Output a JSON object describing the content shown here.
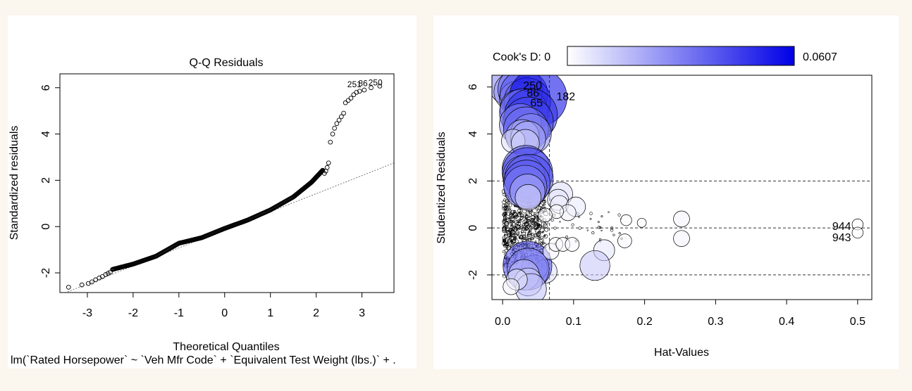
{
  "chart_data": [
    {
      "type": "scatter",
      "title": "Q-Q Residuals",
      "xlabel": "Theoretical Quantiles",
      "ylabel": "Standardized residuals",
      "subtitle": "lm(`Rated Horsepower` ~ `Veh Mfr Code` + `Equivalent Test Weight (lbs.)` + .",
      "xlim": [
        -3.6,
        3.7
      ],
      "ylim": [
        -2.85,
        6.6
      ],
      "xticks": [
        -3,
        -2,
        -1,
        0,
        1,
        2,
        3
      ],
      "yticks": [
        -2,
        0,
        2,
        4,
        6
      ],
      "reference_line": {
        "x": [
          -3.6,
          3.7
        ],
        "y": [
          -2.95,
          2.75
        ]
      },
      "outlier_labels": [
        "251",
        "86",
        "250"
      ],
      "points_head": [
        {
          "x": -3.41,
          "y": -2.62
        },
        {
          "x": -3.12,
          "y": -2.52
        },
        {
          "x": -2.98,
          "y": -2.46
        },
        {
          "x": -2.9,
          "y": -2.39
        },
        {
          "x": -2.82,
          "y": -2.3
        },
        {
          "x": -2.74,
          "y": -2.22
        },
        {
          "x": -2.67,
          "y": -2.16
        },
        {
          "x": -2.6,
          "y": -2.07
        },
        {
          "x": -2.55,
          "y": -2.02
        },
        {
          "x": -2.5,
          "y": -1.97
        }
      ],
      "points_body": [
        {
          "x": -2.45,
          "y": -1.85
        },
        {
          "x": -2.0,
          "y": -1.62
        },
        {
          "x": -1.5,
          "y": -1.28
        },
        {
          "x": -1.0,
          "y": -0.72
        },
        {
          "x": -0.5,
          "y": -0.48
        },
        {
          "x": 0.0,
          "y": -0.08
        },
        {
          "x": 0.5,
          "y": 0.28
        },
        {
          "x": 1.0,
          "y": 0.72
        },
        {
          "x": 1.5,
          "y": 1.28
        },
        {
          "x": 1.9,
          "y": 1.92
        },
        {
          "x": 2.15,
          "y": 2.45
        }
      ],
      "points_tail": [
        {
          "x": 2.18,
          "y": 2.3
        },
        {
          "x": 2.21,
          "y": 2.4
        },
        {
          "x": 2.24,
          "y": 2.55
        },
        {
          "x": 2.27,
          "y": 2.75
        },
        {
          "x": 2.31,
          "y": 3.65
        },
        {
          "x": 2.36,
          "y": 4.0
        },
        {
          "x": 2.4,
          "y": 4.25
        },
        {
          "x": 2.45,
          "y": 4.45
        },
        {
          "x": 2.5,
          "y": 4.6
        },
        {
          "x": 2.55,
          "y": 4.75
        },
        {
          "x": 2.6,
          "y": 4.9
        },
        {
          "x": 2.64,
          "y": 5.35
        },
        {
          "x": 2.7,
          "y": 5.45
        },
        {
          "x": 2.76,
          "y": 5.55
        },
        {
          "x": 2.82,
          "y": 5.7
        },
        {
          "x": 2.88,
          "y": 5.8
        },
        {
          "x": 2.95,
          "y": 5.85
        },
        {
          "x": 3.05,
          "y": 5.9
        },
        {
          "x": 3.2,
          "y": 6.0
        },
        {
          "x": 3.39,
          "y": 6.07
        }
      ]
    },
    {
      "type": "scatter",
      "title": "",
      "xlabel": "Hat-Values",
      "ylabel": "Studentized Residuals",
      "xlim": [
        -0.015,
        0.52
      ],
      "ylim": [
        -3.05,
        6.5
      ],
      "xticks": [
        0.0,
        0.1,
        0.2,
        0.3,
        0.4,
        0.5
      ],
      "xtick_labels": [
        "0.0",
        "0.1",
        "0.2",
        "0.3",
        "0.4",
        "0.5"
      ],
      "yticks": [
        -2,
        0,
        2,
        4,
        6
      ],
      "hlines": [
        -2,
        0,
        2
      ],
      "vline": 0.066,
      "colorbar": {
        "label": "Cook's D: 0",
        "max_label": "0.0607",
        "min": 0,
        "max": 0.0607,
        "color_low": "#ffffff",
        "color_high": "#0000e6"
      },
      "bubbles": [
        {
          "h": 0.01,
          "r": 6.1,
          "d": 0.03,
          "label": ""
        },
        {
          "h": 0.015,
          "r": 5.8,
          "d": 0.025,
          "label": ""
        },
        {
          "h": 0.025,
          "r": 5.9,
          "d": 0.035,
          "label": "250"
        },
        {
          "h": 0.02,
          "r": 5.5,
          "d": 0.02,
          "label": ""
        },
        {
          "h": 0.03,
          "r": 5.7,
          "d": 0.04,
          "label": "86"
        },
        {
          "h": 0.035,
          "r": 5.4,
          "d": 0.038,
          "label": "65"
        },
        {
          "h": 0.05,
          "r": 5.55,
          "d": 0.0607,
          "label": "182"
        },
        {
          "h": 0.022,
          "r": 5.1,
          "d": 0.022,
          "label": ""
        },
        {
          "h": 0.03,
          "r": 4.9,
          "d": 0.042,
          "label": ""
        },
        {
          "h": 0.04,
          "r": 4.8,
          "d": 0.05,
          "label": ""
        },
        {
          "h": 0.036,
          "r": 4.5,
          "d": 0.045,
          "label": ""
        },
        {
          "h": 0.025,
          "r": 4.4,
          "d": 0.03,
          "label": ""
        },
        {
          "h": 0.033,
          "r": 4.2,
          "d": 0.035,
          "label": ""
        },
        {
          "h": 0.04,
          "r": 4.0,
          "d": 0.028,
          "label": ""
        },
        {
          "h": 0.028,
          "r": 3.9,
          "d": 0.018,
          "label": ""
        },
        {
          "h": 0.036,
          "r": 3.8,
          "d": 0.02,
          "label": ""
        },
        {
          "h": 0.015,
          "r": 3.7,
          "d": 0.008,
          "label": ""
        },
        {
          "h": 0.032,
          "r": 3.6,
          "d": 0.012,
          "label": ""
        },
        {
          "h": 0.033,
          "r": 2.5,
          "d": 0.04,
          "label": ""
        },
        {
          "h": 0.035,
          "r": 2.35,
          "d": 0.045,
          "label": ""
        },
        {
          "h": 0.03,
          "r": 2.2,
          "d": 0.03,
          "label": ""
        },
        {
          "h": 0.037,
          "r": 2.1,
          "d": 0.042,
          "label": ""
        },
        {
          "h": 0.034,
          "r": 1.9,
          "d": 0.038,
          "label": ""
        },
        {
          "h": 0.032,
          "r": 1.75,
          "d": 0.032,
          "label": ""
        },
        {
          "h": 0.035,
          "r": 1.55,
          "d": 0.02,
          "label": ""
        },
        {
          "h": 0.036,
          "r": 1.3,
          "d": 0.01,
          "label": ""
        },
        {
          "h": 0.082,
          "r": 1.45,
          "d": 0.008,
          "label": ""
        },
        {
          "h": 0.078,
          "r": 1.2,
          "d": 0.006,
          "label": ""
        },
        {
          "h": 0.08,
          "r": 1.0,
          "d": 0.004,
          "label": ""
        },
        {
          "h": 0.103,
          "r": 0.9,
          "d": 0.005,
          "label": ""
        },
        {
          "h": 0.092,
          "r": 0.65,
          "d": 0.003,
          "label": ""
        },
        {
          "h": 0.076,
          "r": 0.7,
          "d": 0.002,
          "label": ""
        },
        {
          "h": 0.06,
          "r": 0.55,
          "d": 0.002,
          "label": ""
        },
        {
          "h": 0.252,
          "r": 0.38,
          "d": 0.003,
          "label": ""
        },
        {
          "h": 0.252,
          "r": -0.45,
          "d": 0.003,
          "label": ""
        },
        {
          "h": 0.174,
          "r": 0.33,
          "d": 0.001,
          "label": ""
        },
        {
          "h": 0.172,
          "r": -0.55,
          "d": 0.002,
          "label": ""
        },
        {
          "h": 0.196,
          "r": 0.22,
          "d": 0.0005,
          "label": ""
        },
        {
          "h": 0.5,
          "r": 0.15,
          "d": 0.001,
          "label": "944"
        },
        {
          "h": 0.5,
          "r": -0.2,
          "d": 0.001,
          "label": "943"
        },
        {
          "h": 0.143,
          "r": -0.95,
          "d": 0.006,
          "label": ""
        },
        {
          "h": 0.13,
          "r": -1.6,
          "d": 0.014,
          "label": ""
        },
        {
          "h": 0.06,
          "r": -1.85,
          "d": 0.008,
          "label": ""
        },
        {
          "h": 0.045,
          "r": -1.7,
          "d": 0.01,
          "label": ""
        },
        {
          "h": 0.035,
          "r": -1.6,
          "d": 0.042,
          "label": ""
        },
        {
          "h": 0.036,
          "r": -1.75,
          "d": 0.03,
          "label": ""
        },
        {
          "h": 0.03,
          "r": -2.0,
          "d": 0.015,
          "label": ""
        },
        {
          "h": 0.036,
          "r": -2.3,
          "d": 0.012,
          "label": ""
        },
        {
          "h": 0.04,
          "r": -2.6,
          "d": 0.015,
          "label": ""
        },
        {
          "h": 0.02,
          "r": -2.2,
          "d": 0.006,
          "label": ""
        },
        {
          "h": 0.012,
          "r": -2.5,
          "d": 0.003,
          "label": ""
        },
        {
          "h": 0.068,
          "r": -1.0,
          "d": 0.003,
          "label": ""
        },
        {
          "h": 0.075,
          "r": -0.7,
          "d": 0.002,
          "label": ""
        },
        {
          "h": 0.085,
          "r": -0.7,
          "d": 0.002,
          "label": ""
        },
        {
          "h": 0.098,
          "r": -0.7,
          "d": 0.002,
          "label": ""
        }
      ]
    }
  ]
}
